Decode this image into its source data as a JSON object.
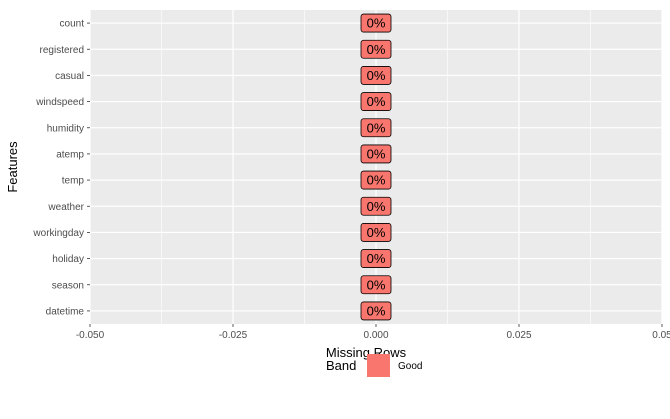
{
  "chart_data": {
    "type": "bar",
    "orientation": "horizontal",
    "categories": [
      "count",
      "registered",
      "casual",
      "windspeed",
      "humidity",
      "atemp",
      "temp",
      "weather",
      "workingday",
      "holiday",
      "season",
      "datetime"
    ],
    "values": [
      0,
      0,
      0,
      0,
      0,
      0,
      0,
      0,
      0,
      0,
      0,
      0
    ],
    "data_labels": [
      "0%",
      "0%",
      "0%",
      "0%",
      "0%",
      "0%",
      "0%",
      "0%",
      "0%",
      "0%",
      "0%",
      "0%"
    ],
    "xlabel": "Missing Rows",
    "ylabel": "Features",
    "xlim": [
      -0.05,
      0.05
    ],
    "xticks": [
      -0.05,
      -0.025,
      0,
      0.025,
      0.05
    ],
    "xtick_labels": [
      "-0.050",
      "-0.025",
      "0.000",
      "0.025",
      "0.05"
    ],
    "grid": true,
    "legend": {
      "title": "Band",
      "entries": [
        {
          "label": "Good",
          "color": "#F8766D"
        }
      ],
      "position": "bottom"
    },
    "colors": {
      "panel": "#EBEBEB",
      "grid": "#FFFFFF",
      "bar_fill": "#F8766D"
    }
  }
}
